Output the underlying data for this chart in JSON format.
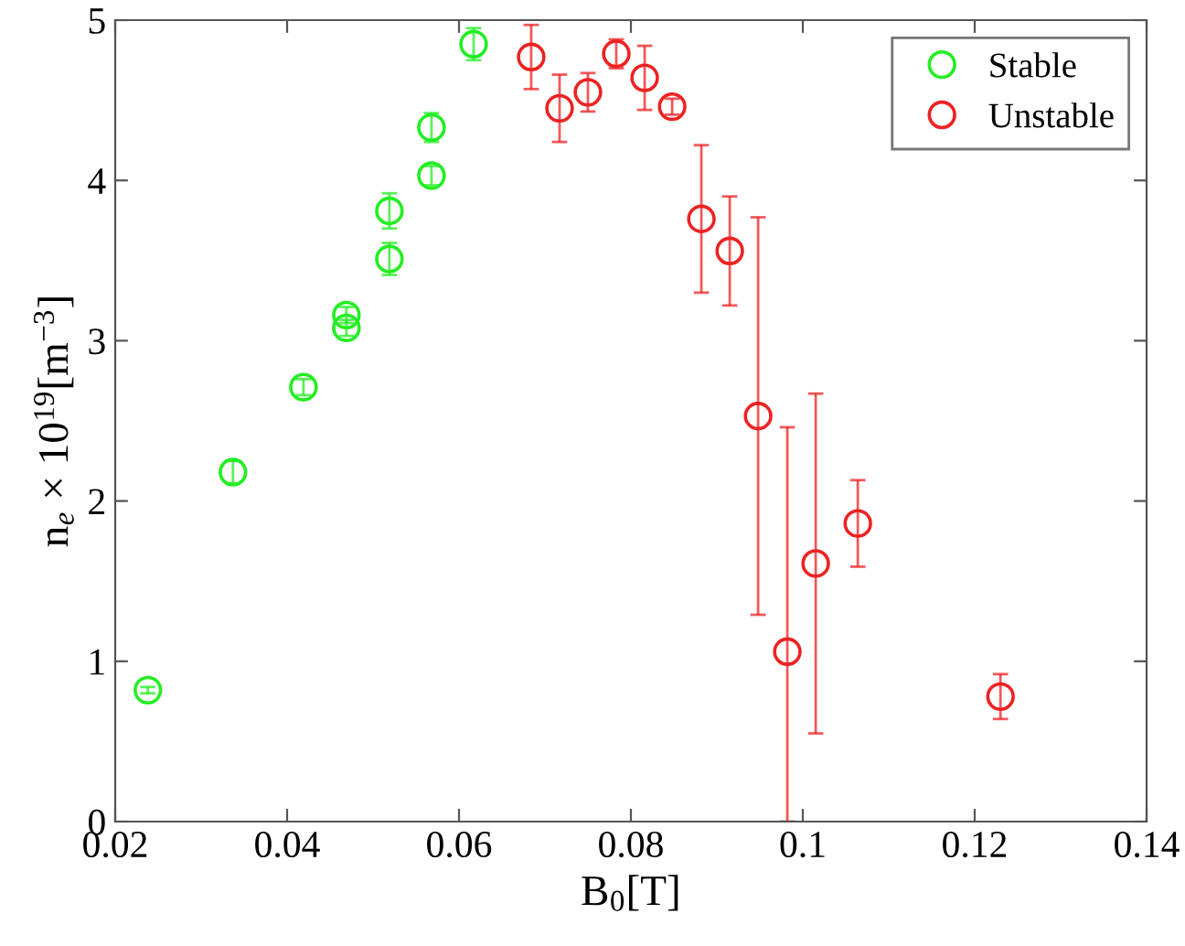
{
  "chart_data": {
    "type": "scatter",
    "xlabel": "B$_{0}$[T]",
    "ylabel": "n$_{e}$ × 10$^{19}$[m$^{−3}$]",
    "xlim": [
      0.02,
      0.14
    ],
    "xticks": [
      0.02,
      0.04,
      0.06,
      0.08,
      0.1,
      0.12,
      0.14
    ],
    "ylim": [
      0,
      5
    ],
    "yticks": [
      0,
      1,
      2,
      3,
      4,
      5
    ],
    "grid": false,
    "legend": "top right",
    "marker": "circle",
    "series": [
      {
        "name": "Stable",
        "color": "#22ee22",
        "x": [
          0.0238,
          0.0337,
          0.0419,
          0.0469,
          0.0469,
          0.0519,
          0.0519,
          0.0568,
          0.0568,
          0.0617
        ],
        "values": [
          0.82,
          2.18,
          2.71,
          3.16,
          3.08,
          3.51,
          3.81,
          4.03,
          4.33,
          4.85
        ],
        "errors": [
          0.02,
          0.07,
          0.05,
          0.05,
          0.05,
          0.1,
          0.11,
          0.06,
          0.09,
          0.1
        ]
      },
      {
        "name": "Unstable",
        "color": "#ee2222",
        "x": [
          0.0684,
          0.0717,
          0.075,
          0.0783,
          0.0816,
          0.0848,
          0.0882,
          0.0915,
          0.0948,
          0.0982,
          0.1015,
          0.1064,
          0.123
        ],
        "values": [
          4.77,
          4.45,
          4.55,
          4.79,
          4.64,
          4.46,
          3.76,
          3.56,
          2.53,
          1.06,
          1.61,
          1.86,
          0.78
        ],
        "errors": [
          0.2,
          0.21,
          0.12,
          0.09,
          0.2,
          0.05,
          0.46,
          0.34,
          1.24,
          [
            0,
            2.46
          ],
          1.06,
          0.27,
          0.14
        ]
      }
    ]
  }
}
